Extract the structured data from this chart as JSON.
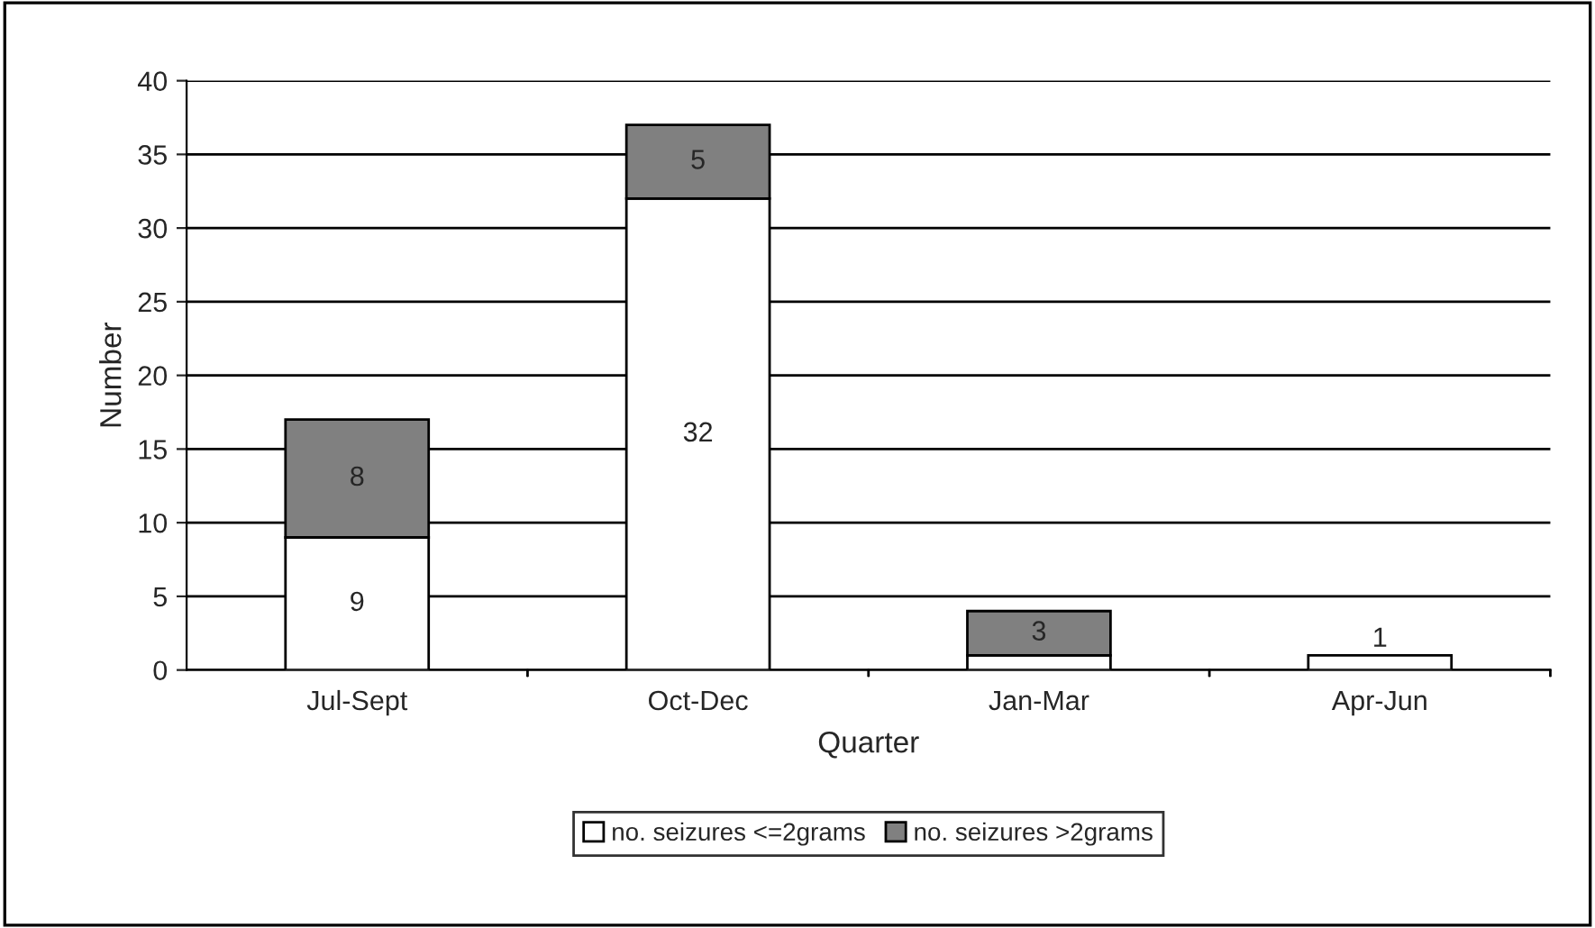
{
  "chart_data": {
    "type": "bar",
    "stacked": true,
    "categories": [
      "Jul-Sept",
      "Oct-Dec",
      "Jan-Mar",
      "Apr-Jun"
    ],
    "series": [
      {
        "name": "no. seizures <=2grams",
        "color": "#ffffff",
        "values": [
          9,
          32,
          1,
          1
        ],
        "value_labels": [
          "9",
          "32",
          null,
          "1"
        ]
      },
      {
        "name": "no. seizures >2grams",
        "color": "#808080",
        "values": [
          8,
          5,
          3,
          0
        ],
        "value_labels": [
          "8",
          "5",
          "3",
          null
        ]
      }
    ],
    "xlabel": "Quarter",
    "ylabel": "Number",
    "ylim": [
      0,
      40
    ],
    "yticks": [
      0,
      5,
      10,
      15,
      20,
      25,
      30,
      35,
      40
    ],
    "grid": "y",
    "legend": "bottom"
  }
}
